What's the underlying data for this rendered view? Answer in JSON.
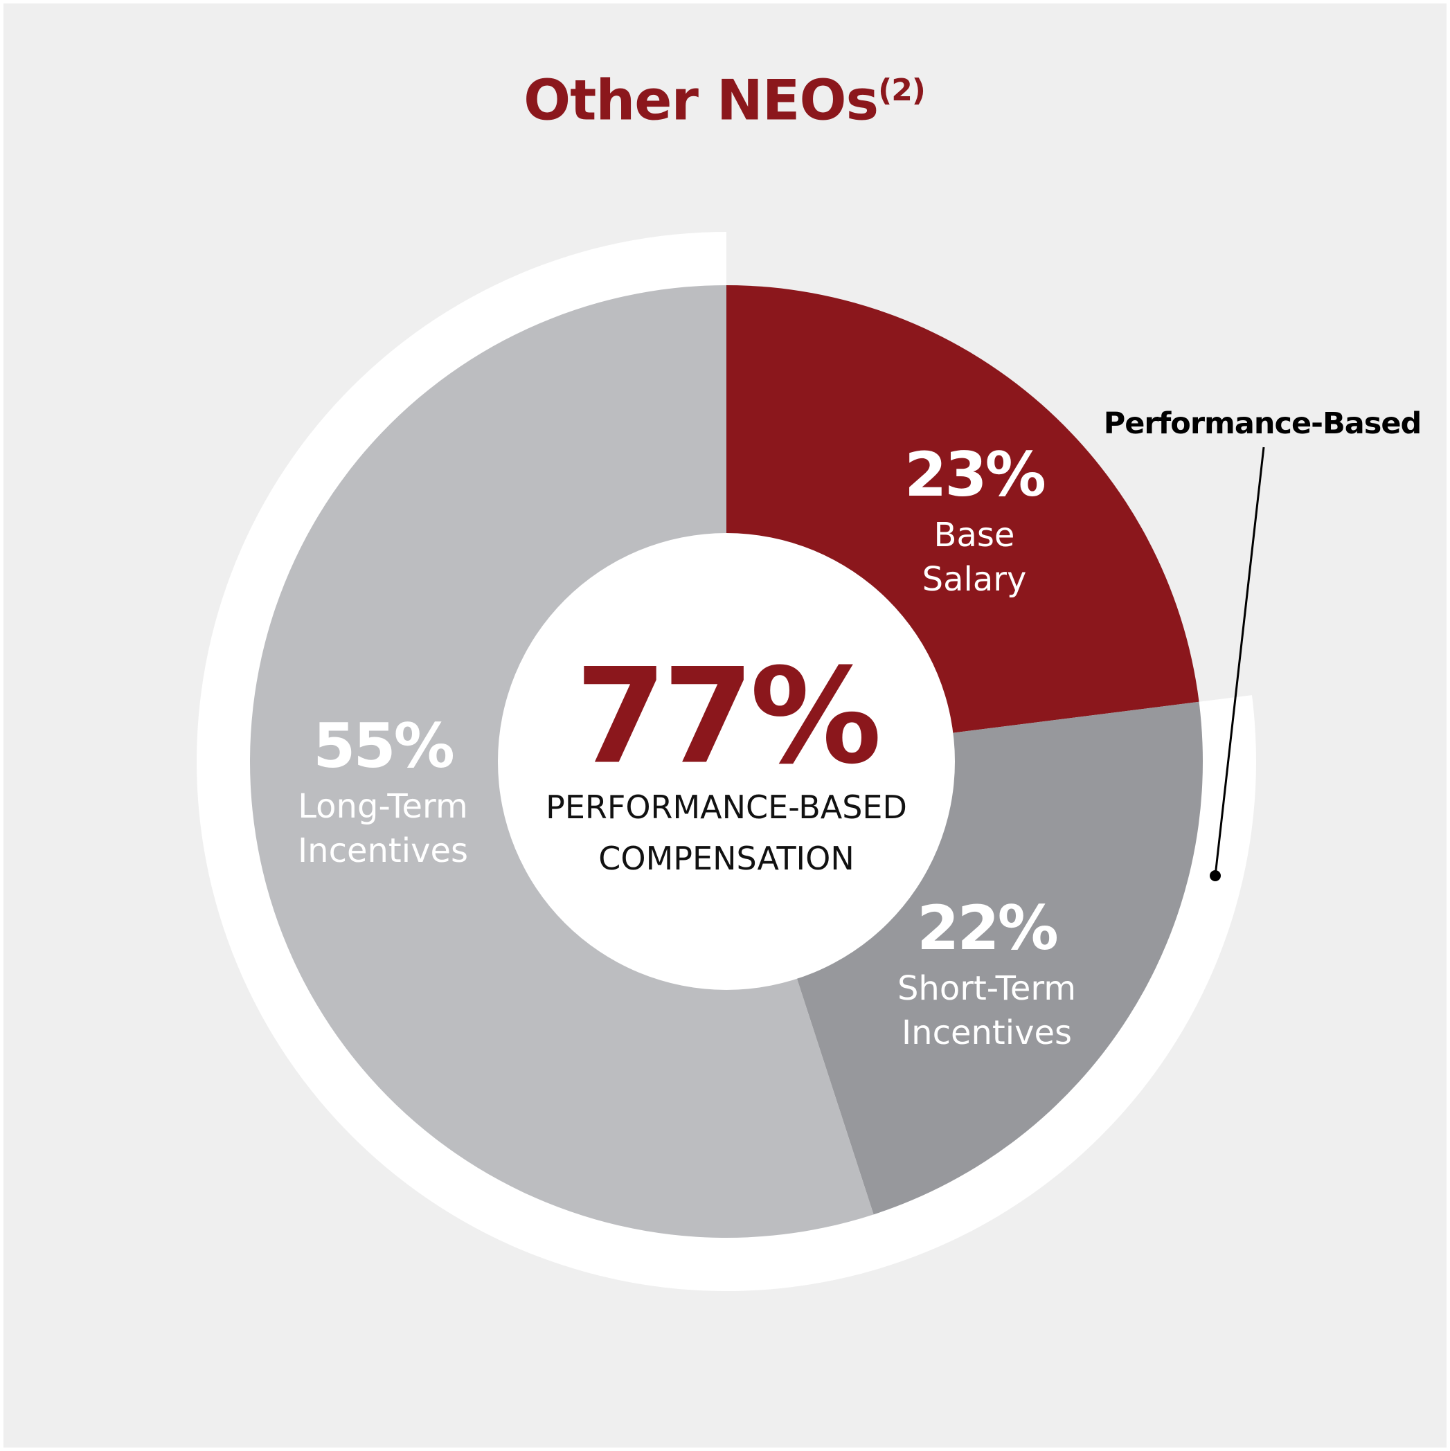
{
  "chart_data": {
    "type": "pie",
    "donut": true,
    "title": "Other NEOs",
    "title_superscript": "(2)",
    "categories": [
      "Base Salary",
      "Short-Term Incentives",
      "Long-Term Incentives"
    ],
    "values": [
      23,
      22,
      55
    ],
    "value_labels": [
      "23%",
      "22%",
      "55%"
    ],
    "colors": [
      "#8b171c",
      "#97989c",
      "#bcbdc0"
    ],
    "center_value": {
      "value": 77,
      "label": "77%"
    },
    "center_text": "PERFORMANCE-BASED COMPENSATION",
    "annotation": "Performance-Based"
  }
}
